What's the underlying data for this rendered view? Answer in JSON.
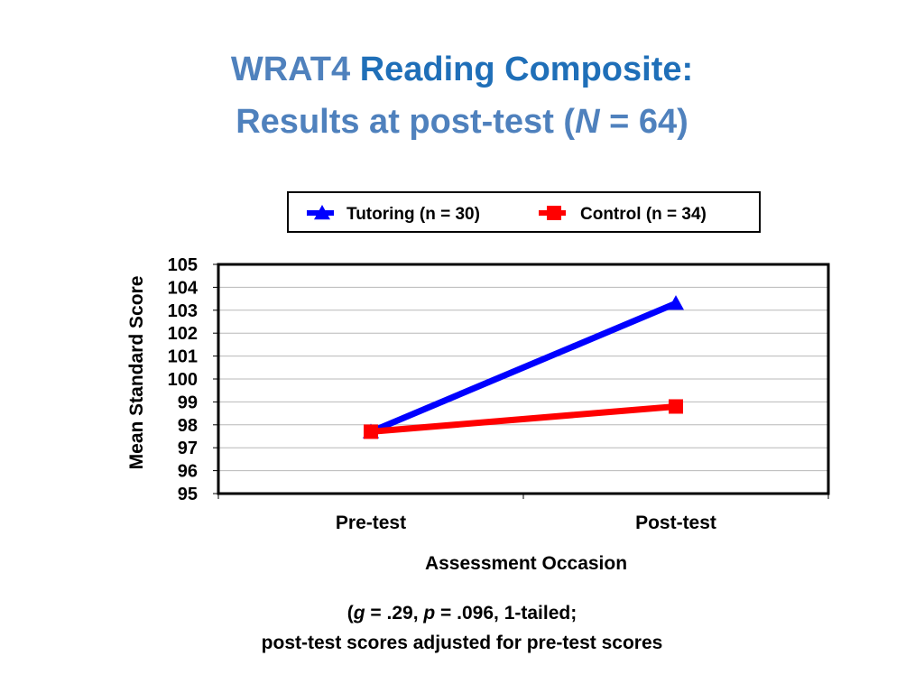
{
  "title": {
    "part1": "WRAT4",
    "part2": "Reading Composite:",
    "line2_prefix": "Results at post-test (",
    "line2_n": "N",
    "line2_suffix": " = 64)"
  },
  "note": {
    "open": "(",
    "g": "g",
    "g_val": " = .29, ",
    "p": "p",
    "p_val": " = .096, 1-tailed;",
    "line2": "post-test scores adjusted for pre-test scores"
  },
  "colors": {
    "tutoring": "#0000ff",
    "control": "#ff0000",
    "title": "#4f81bd",
    "title_accent": "#1f6fb8"
  },
  "chart_data": {
    "type": "line",
    "categories": [
      "Pre-test",
      "Post-test"
    ],
    "series": [
      {
        "name": "Tutoring (n = 30)",
        "values": [
          97.7,
          103.3
        ],
        "marker": "triangle"
      },
      {
        "name": "Control (n = 34)",
        "values": [
          97.7,
          98.8
        ],
        "marker": "square"
      }
    ],
    "xlabel": "Assessment Occasion",
    "ylabel": "Mean Standard Score",
    "ylim": [
      95,
      105
    ],
    "yticks": [
      95,
      96,
      97,
      98,
      99,
      100,
      101,
      102,
      103,
      104,
      105
    ],
    "grid": true,
    "legend": "top"
  }
}
